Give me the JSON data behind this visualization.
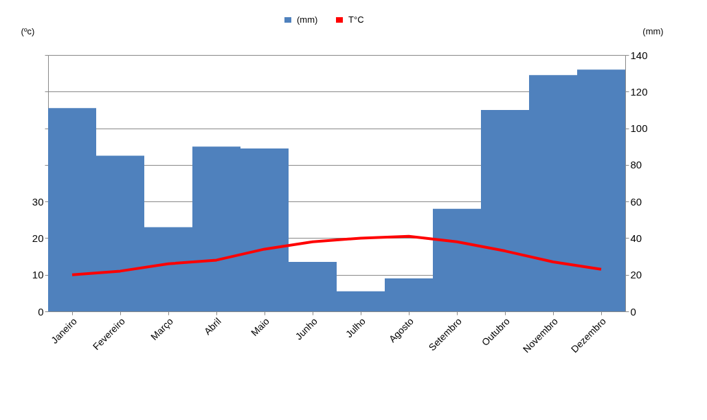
{
  "chart_data": {
    "type": "bar",
    "categories": [
      "Janeiro",
      "Fevereiro",
      "Março",
      "Abril",
      "Maio",
      "Junho",
      "Julho",
      "Agosto",
      "Setembro",
      "Outubro",
      "Novembro",
      "Dezembro"
    ],
    "series": [
      {
        "name": "(mm)",
        "color": "#4f81bd",
        "axis": "y2",
        "values": [
          111,
          85,
          46,
          90,
          89,
          27,
          11,
          18,
          56,
          110,
          129,
          132
        ]
      },
      {
        "name": "T°C",
        "color": "#ff0000",
        "type": "line",
        "axis": "y",
        "values": [
          10,
          11,
          13,
          14,
          17,
          19,
          20,
          20.5,
          19,
          16.5,
          13.5,
          11.5
        ]
      }
    ],
    "ylabel": "(ºc)",
    "y2label": "(mm)",
    "ylim": [
      0,
      70
    ],
    "yticks": [
      0,
      10,
      20,
      30,
      {
        "value": 40,
        "label": null
      },
      {
        "value": 50,
        "label": null
      },
      {
        "value": 60,
        "label": null
      },
      {
        "value": 70,
        "label": null
      }
    ],
    "y2lim": [
      0,
      140
    ],
    "y2ticks": [
      0,
      20,
      40,
      60,
      80,
      100,
      120,
      140
    ],
    "grid": "y",
    "legend": "top",
    "marker": "none",
    "line_style": "solid"
  }
}
